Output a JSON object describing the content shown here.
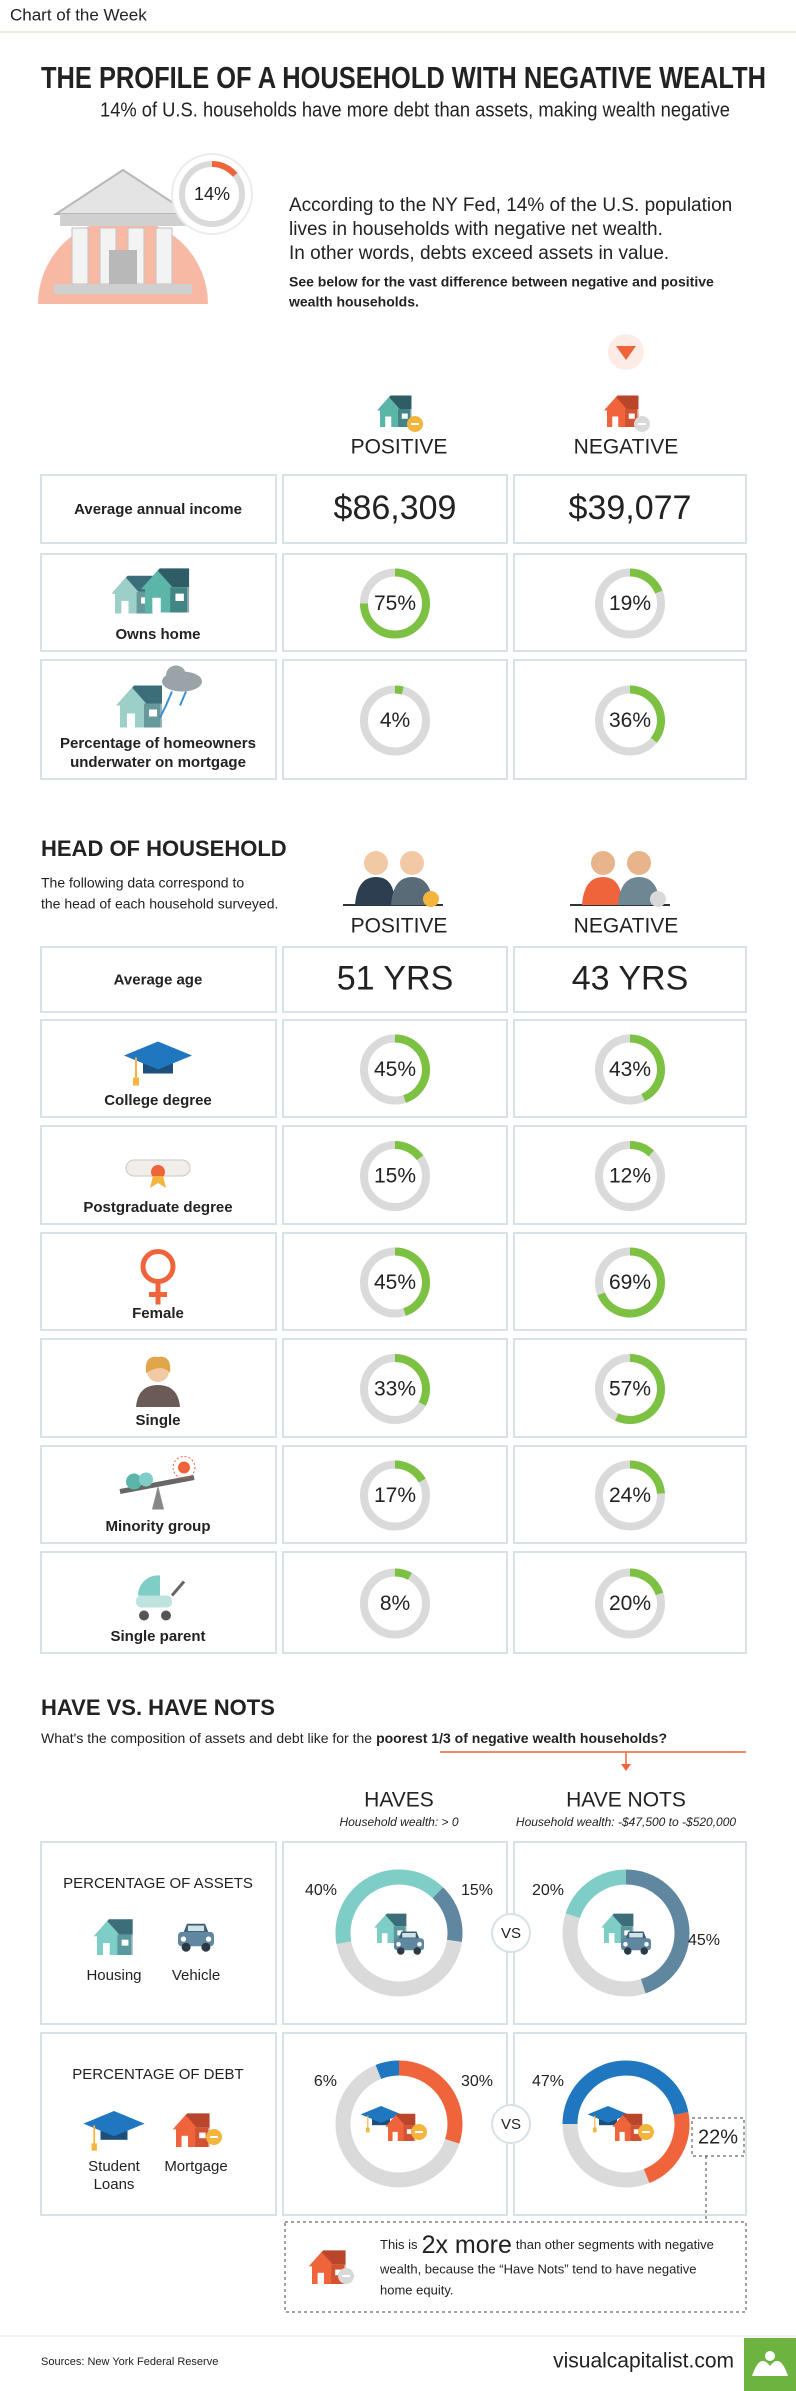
{
  "header": {
    "tag": "Chart of the Week",
    "title": "THE PROFILE OF A HOUSEHOLD WITH NEGATIVE WEALTH",
    "subtitle": "14% of U.S. households have more debt than assets, making wealth negative"
  },
  "intro": {
    "share": {
      "value": 14,
      "label": "14%"
    },
    "lines": [
      "According to the NY Fed, 14% of the U.S. population",
      "lives in households with negative net wealth.",
      "In other words, debts exceed assets in value."
    ],
    "note": [
      "See below for the vast difference between negative and positive",
      "wealth households."
    ]
  },
  "columns": [
    "POSITIVE",
    "NEGATIVE"
  ],
  "household": {
    "rows": [
      {
        "label": [
          "Average annual income"
        ],
        "values": [
          "$86,309",
          "$39,077"
        ]
      },
      {
        "label": [
          "Owns home"
        ],
        "values": [
          {
            "value": 75,
            "label": "75%"
          },
          {
            "value": 19,
            "label": "19%"
          }
        ]
      },
      {
        "label": [
          "Percentage of homeowners",
          "underwater on mortgage"
        ],
        "values": [
          {
            "value": 4,
            "label": "4%"
          },
          {
            "value": 36,
            "label": "36%"
          }
        ]
      }
    ]
  },
  "head": {
    "title": "HEAD OF HOUSEHOLD",
    "text": [
      "The following data correspond to",
      "the head of each household surveyed."
    ],
    "rows": [
      {
        "label": [
          "Average age"
        ],
        "values": [
          "51 YRS",
          "43 YRS"
        ]
      },
      {
        "label": [
          "College degree"
        ],
        "values": [
          {
            "value": 45,
            "label": "45%"
          },
          {
            "value": 43,
            "label": "43%"
          }
        ]
      },
      {
        "label": [
          "Postgraduate degree"
        ],
        "values": [
          {
            "value": 15,
            "label": "15%"
          },
          {
            "value": 12,
            "label": "12%"
          }
        ]
      },
      {
        "label": [
          "Female"
        ],
        "values": [
          {
            "value": 45,
            "label": "45%"
          },
          {
            "value": 69,
            "label": "69%"
          }
        ]
      },
      {
        "label": [
          "Single"
        ],
        "values": [
          {
            "value": 33,
            "label": "33%"
          },
          {
            "value": 57,
            "label": "57%"
          }
        ]
      },
      {
        "label": [
          "Minority group"
        ],
        "values": [
          {
            "value": 17,
            "label": "17%"
          },
          {
            "value": 24,
            "label": "24%"
          }
        ]
      },
      {
        "label": [
          "Single parent"
        ],
        "values": [
          {
            "value": 8,
            "label": "8%"
          },
          {
            "value": 20,
            "label": "20%"
          }
        ]
      }
    ]
  },
  "composition": {
    "title": "HAVE VS. HAVE NOTS",
    "question": "What's the composition of assets and debt like for the",
    "highlight": "poorest 1/3 of negative wealth households?",
    "groups": [
      {
        "name": "HAVES",
        "note": "Household wealth: > 0"
      },
      {
        "name": "HAVE NOTS",
        "note": "Household wealth: -$47,500 to -$520,000"
      }
    ],
    "vs": "VS",
    "panels": [
      {
        "title": "PERCENTAGE OF ASSETS",
        "legend": [
          [
            "Housing"
          ],
          [
            "Vehicle"
          ]
        ],
        "colors": [
          "#7ecdc7",
          "#5f879f"
        ],
        "groups": [
          [
            {
              "value": 40,
              "label": "40%"
            },
            {
              "value": 15,
              "label": "15%"
            }
          ],
          [
            {
              "value": 20,
              "label": "20%"
            },
            {
              "value": 45,
              "label": "45%"
            }
          ]
        ]
      },
      {
        "title": "PERCENTAGE OF DEBT",
        "legend": [
          [
            "Student",
            "Loans"
          ],
          [
            "Mortgage"
          ]
        ],
        "colors": [
          "#1f77c0",
          "#f0643c"
        ],
        "groups": [
          [
            {
              "value": 6,
              "label": "6%"
            },
            {
              "value": 30,
              "label": "30%"
            }
          ],
          [
            {
              "value": 47,
              "label": "47%"
            },
            {
              "value": 22,
              "label": "22%"
            }
          ]
        ]
      }
    ]
  },
  "callout": {
    "before": "This is",
    "emphasis": "2x more",
    "after": "than other segments with negative",
    "rest": [
      "wealth, because the “Have Nots” tend to have negative",
      "home equity."
    ]
  },
  "footer": {
    "source": "Sources: New York Federal Reserve",
    "site": "visualcapitalist.com"
  }
}
